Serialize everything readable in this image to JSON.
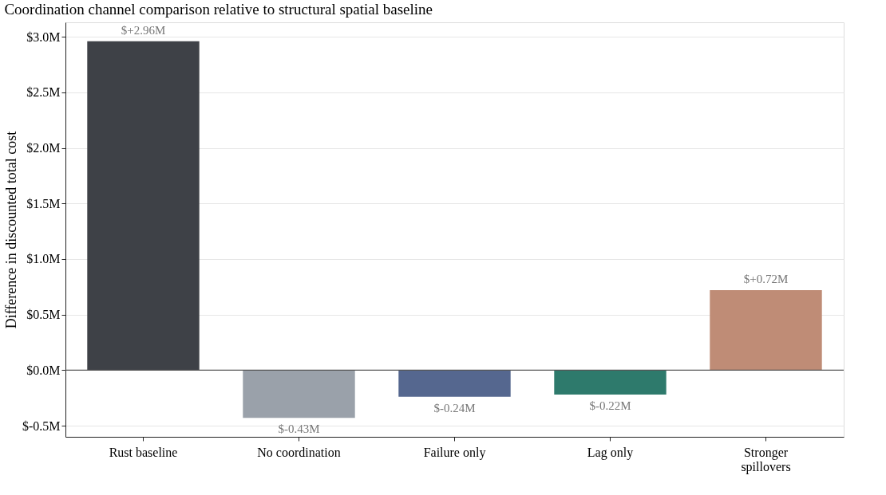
{
  "chart_data": {
    "type": "bar",
    "title": "Coordination channel comparison relative to structural spatial baseline",
    "ylabel": "Difference in discounted total cost",
    "categories": [
      "Rust baseline",
      "No coordination",
      "Failure only",
      "Lag only",
      "Stronger spillovers"
    ],
    "values": [
      2.96,
      -0.43,
      -0.24,
      -0.22,
      0.72
    ],
    "colors": [
      "#3e4147",
      "#9aa1aa",
      "#55678f",
      "#2e7a6c",
      "#bf8c76"
    ],
    "value_labels": [
      "$+2.96M",
      "$-0.43M",
      "$-0.24M",
      "$-0.22M",
      "$+0.72M"
    ],
    "ylim": [
      -0.6,
      3.13
    ],
    "yticks": [
      {
        "value": -0.5,
        "label": "$-0.5M"
      },
      {
        "value": 0,
        "label": "$0.0M"
      },
      {
        "value": 0.5,
        "label": "$0.5M"
      },
      {
        "value": 1,
        "label": "$1.0M"
      },
      {
        "value": 1.5,
        "label": "$1.5M"
      },
      {
        "value": 2,
        "label": "$2.0M"
      },
      {
        "value": 2.5,
        "label": "$2.5M"
      },
      {
        "value": 3,
        "label": "$3.0M"
      }
    ],
    "ref_lines": [
      {
        "axis": "y",
        "value": 0,
        "color": "#555555"
      }
    ],
    "grid": "y"
  }
}
